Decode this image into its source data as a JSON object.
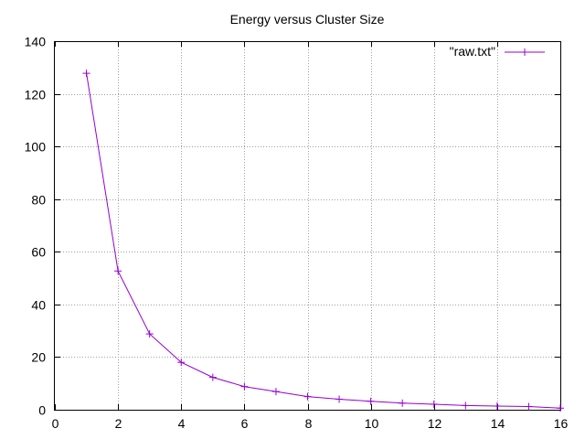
{
  "chart_data": {
    "type": "line",
    "title": "Energy versus Cluster Size",
    "xlabel": "",
    "ylabel": "",
    "xlim": [
      0,
      16
    ],
    "ylim": [
      0,
      140
    ],
    "xticks": [
      0,
      2,
      4,
      6,
      8,
      10,
      12,
      14,
      16
    ],
    "yticks": [
      0,
      20,
      40,
      60,
      80,
      100,
      120,
      140
    ],
    "grid": true,
    "legend_position": "top-right",
    "series": [
      {
        "name": "\"raw.txt\"",
        "color": "#9400d3",
        "marker": "plus",
        "x": [
          1,
          2,
          3,
          4,
          5,
          6,
          7,
          8,
          9,
          10,
          11,
          12,
          13,
          14,
          15,
          16
        ],
        "y": [
          127.8,
          52.7,
          28.8,
          18.0,
          12.3,
          8.8,
          6.9,
          5.0,
          4.0,
          3.2,
          2.5,
          2.1,
          1.6,
          1.4,
          1.2,
          0.6
        ]
      }
    ]
  }
}
